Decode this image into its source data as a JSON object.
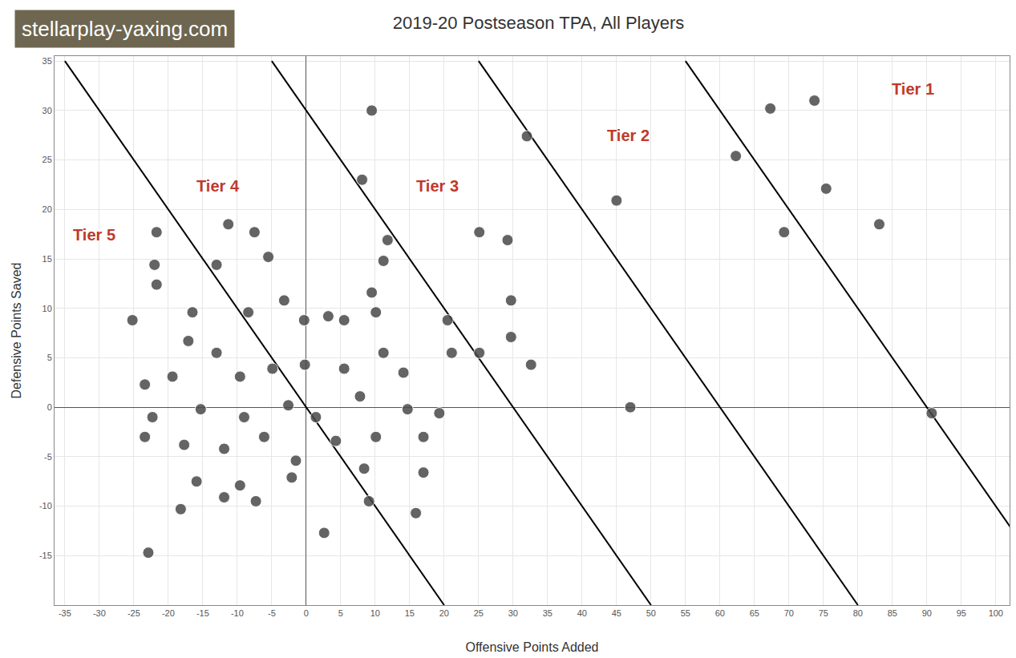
{
  "chart_data": {
    "type": "scatter",
    "title": "2019-20 Postseason TPA, All Players",
    "x_label": "Offensive Points Added",
    "y_label": "Defensive Points Saved",
    "watermark": "stellarplay-yaxing.com",
    "marker": "circle",
    "color": "#4a4a4a",
    "grid": true,
    "xlim": [
      -36.5,
      102
    ],
    "ylim": [
      -20,
      35.5
    ],
    "xticks": [
      -35,
      -30,
      -25,
      -20,
      -15,
      -10,
      -5,
      0,
      5,
      10,
      15,
      20,
      25,
      30,
      35,
      40,
      45,
      50,
      55,
      60,
      65,
      70,
      75,
      80,
      85,
      90,
      95,
      100
    ],
    "yticks": [
      -15,
      -10,
      -5,
      0,
      5,
      10,
      15,
      20,
      25,
      30,
      35
    ],
    "x": [
      67.3,
      73.7,
      62.3,
      75.4,
      69.3,
      83.1,
      90.7,
      32.0,
      45.0,
      47.0,
      9.5,
      8.1,
      -21.7,
      -11.3,
      -7.5,
      -13.0,
      25.1,
      29.2,
      11.8,
      11.2,
      -21.7,
      -16.5,
      -25.2,
      -3.2,
      -8.4,
      -0.3,
      3.2,
      9.5,
      10.1,
      5.5,
      20.5,
      29.7,
      29.7,
      25.1,
      32.6,
      -17.1,
      -13.0,
      -23.4,
      -19.4,
      -9.6,
      -4.9,
      -0.2,
      5.5,
      14.1,
      21.1,
      11.2,
      -22.3,
      -15.3,
      -9.0,
      -2.6,
      1.4,
      7.8,
      14.7,
      19.3,
      -23.4,
      -17.7,
      -11.9,
      -6.1,
      -1.5,
      4.3,
      10.1,
      17.0,
      -15.9,
      -9.6,
      -2.1,
      8.4,
      17.0,
      -18.2,
      -11.9,
      -7.3,
      9.1,
      15.9,
      -22.9,
      2.6,
      -22.0,
      -5.5
    ],
    "y": [
      30.2,
      31.0,
      25.4,
      22.1,
      17.7,
      18.5,
      -0.6,
      27.4,
      20.9,
      0.0,
      30.0,
      23.0,
      17.7,
      18.5,
      17.7,
      14.4,
      17.7,
      16.9,
      16.9,
      14.8,
      12.4,
      9.6,
      8.8,
      10.8,
      9.6,
      8.8,
      9.2,
      11.6,
      9.6,
      8.8,
      8.8,
      10.8,
      7.1,
      5.5,
      4.3,
      6.7,
      5.5,
      2.3,
      3.1,
      3.1,
      3.9,
      4.3,
      3.9,
      3.5,
      5.5,
      5.5,
      -1.0,
      -0.2,
      -1.0,
      0.2,
      -1.0,
      1.1,
      -0.2,
      -0.6,
      -3.0,
      -3.8,
      -4.2,
      -3.0,
      -5.4,
      -3.4,
      -3.0,
      -3.0,
      -7.5,
      -7.9,
      -7.1,
      -6.2,
      -6.6,
      -10.3,
      -9.1,
      -9.5,
      -9.5,
      -10.7,
      -14.7,
      -12.7,
      14.4,
      15.2
    ],
    "lines": [
      {
        "x": [
          -35,
          20
        ],
        "y": [
          35,
          -20
        ],
        "color": "#000000"
      },
      {
        "x": [
          -5,
          50
        ],
        "y": [
          35,
          -20
        ],
        "color": "#000000"
      },
      {
        "x": [
          25,
          80
        ],
        "y": [
          35,
          -20
        ],
        "color": "#000000"
      },
      {
        "x": [
          55,
          110
        ],
        "y": [
          35,
          -20
        ],
        "color": "#000000"
      }
    ],
    "annotations": [
      {
        "text": "Tier 1",
        "x": 88,
        "y": 32.2,
        "color": "#c0392b"
      },
      {
        "text": "Tier 2",
        "x": 46.7,
        "y": 27.5,
        "color": "#c0392b"
      },
      {
        "text": "Tier 3",
        "x": 19,
        "y": 22.4,
        "color": "#c0392b"
      },
      {
        "text": "Tier 4",
        "x": -12.8,
        "y": 22.4,
        "color": "#c0392b"
      },
      {
        "text": "Tier 5",
        "x": -30.7,
        "y": 17.4,
        "color": "#c0392b"
      }
    ]
  }
}
